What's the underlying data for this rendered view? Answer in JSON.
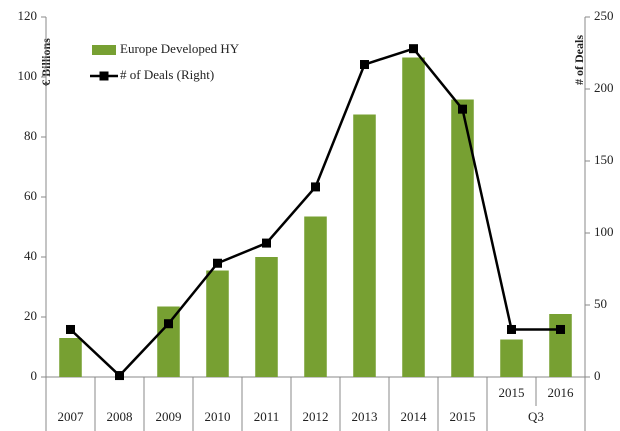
{
  "chart_data": {
    "type": "bar",
    "categories": [
      "2007",
      "2008",
      "2009",
      "2010",
      "2011",
      "2012",
      "2013",
      "2014",
      "2015",
      "2015",
      "2016"
    ],
    "category_sublabels": [
      null,
      null,
      null,
      null,
      null,
      null,
      null,
      null,
      null,
      "Q3",
      "Q3"
    ],
    "series": [
      {
        "name": "Europe Developed HY",
        "type": "bar",
        "color": "#77a032",
        "values": [
          13,
          0,
          23.5,
          35.5,
          40,
          53.5,
          87.5,
          106.5,
          92.5,
          12.5,
          21
        ]
      },
      {
        "name": "# of Deals (Right)",
        "type": "line",
        "axis": "y2",
        "color": "#000000",
        "values": [
          33,
          1,
          37,
          79,
          93,
          132,
          217,
          228,
          186,
          33,
          33
        ]
      }
    ],
    "ylabel": "€ Billions",
    "y2label": "# of Deals",
    "ylim": [
      0,
      120
    ],
    "yticks": [
      0,
      20,
      40,
      60,
      80,
      100,
      120
    ],
    "y2lim": [
      0,
      250
    ],
    "y2ticks": [
      0,
      50,
      100,
      150,
      200,
      250
    ],
    "legend": "upper left"
  }
}
